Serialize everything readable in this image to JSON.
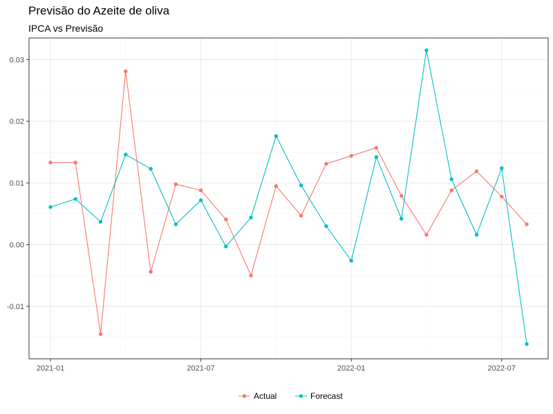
{
  "chart_data": {
    "type": "line",
    "title": "Previsão do Azeite de oliva",
    "subtitle": "IPCA vs Previsão",
    "xlabel": "",
    "ylabel": "",
    "x": [
      "2021-01",
      "2021-02",
      "2021-03",
      "2021-04",
      "2021-05",
      "2021-06",
      "2021-07",
      "2021-08",
      "2021-09",
      "2021-10",
      "2021-11",
      "2021-12",
      "2022-01",
      "2022-02",
      "2022-03",
      "2022-04",
      "2022-05",
      "2022-06",
      "2022-07",
      "2022-08"
    ],
    "x_ticks": [
      "2021-01",
      "2021-07",
      "2022-01",
      "2022-07"
    ],
    "y_ticks": [
      -0.01,
      0.0,
      0.01,
      0.02,
      0.03
    ],
    "y_tick_labels": [
      "-0.01",
      "0.00",
      "0.01",
      "0.02",
      "0.03"
    ],
    "ylim": [
      -0.0185,
      0.0335
    ],
    "grid": true,
    "legend_position": "bottom",
    "series": [
      {
        "name": "Actual",
        "color": "#F8766D",
        "values": [
          0.0133,
          0.0133,
          -0.0145,
          0.0281,
          -0.0044,
          0.0098,
          0.0088,
          0.0041,
          -0.005,
          0.0095,
          0.0047,
          0.0131,
          0.0144,
          0.0157,
          0.0079,
          0.0016,
          0.0088,
          0.0119,
          0.0078,
          0.0033
        ]
      },
      {
        "name": "Forecast",
        "color": "#00BFC4",
        "values": [
          0.0061,
          0.0074,
          0.0037,
          0.0146,
          0.0123,
          0.0033,
          0.0072,
          -0.0003,
          0.0044,
          0.0176,
          0.0096,
          0.003,
          -0.0026,
          0.0142,
          0.0042,
          0.0315,
          0.0106,
          0.0016,
          0.0124,
          -0.0161
        ]
      }
    ]
  }
}
